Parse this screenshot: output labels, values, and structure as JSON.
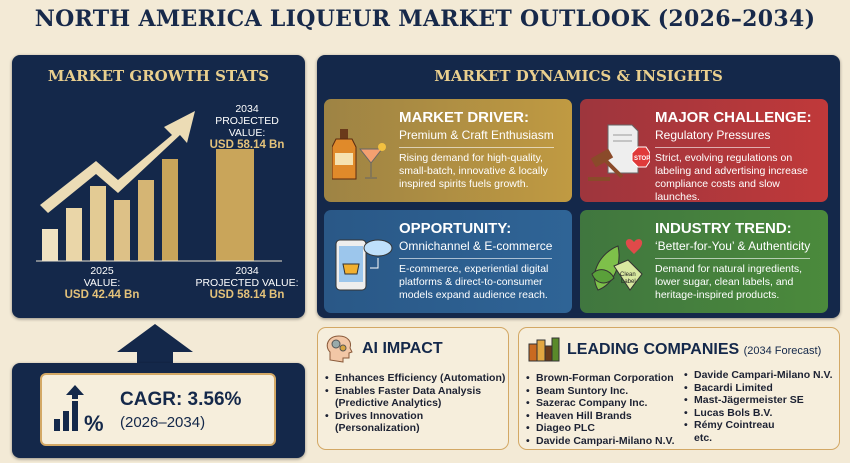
{
  "title": "NORTH AMERICA LIQUEUR MARKET OUTLOOK (2026–2034)",
  "growth": {
    "heading": "MARKET GROWTH STATS",
    "top_label": {
      "year": "2034",
      "caption": "PROJECTED VALUE:",
      "value": "USD 58.14 Bn"
    },
    "left_label": {
      "year": "2025",
      "caption": "VALUE:",
      "value": "USD 42.44 Bn"
    },
    "right_label": {
      "year": "2034",
      "caption": "PROJECTED VALUE:",
      "value": "USD 58.14 Bn"
    },
    "colors": {
      "bar": "#c9a55a",
      "panel": "#14284a"
    }
  },
  "cagr": {
    "label": "CAGR: 3.56%",
    "period": "(2026–2034)",
    "icon": "bar-chart-percent-icon"
  },
  "dynamics": {
    "heading": "MARKET DYNAMICS & INSIGHTS",
    "cards": [
      {
        "title": "MARKET DRIVER:",
        "subtitle": "Premium & Craft Enthusiasm",
        "text": "Rising demand for high-quality, small-batch, innovative & locally inspired spirits fuels growth.",
        "color": "#c09a42",
        "icon": "liquor-bottle-cocktail-icon",
        "icon_text": "ARTISANAL"
      },
      {
        "title": "MAJOR CHALLENGE:",
        "subtitle": "Regulatory Pressures",
        "text": "Strict, evolving regulations on labeling and advertising increase compliance costs and slow launches.",
        "color": "#c0393a",
        "icon": "gavel-stop-document-icon",
        "icon_text": "STOP"
      },
      {
        "title": "OPPORTUNITY:",
        "subtitle": "Omnichannel & E-commerce",
        "text": "E-commerce, experiential digital platforms & direct-to-consumer models expand audience reach.",
        "color": "#2f6496",
        "icon": "phone-cart-cloud-icon"
      },
      {
        "title": "INDUSTRY TREND:",
        "subtitle": "‘Better-for-You’ & Authenticity",
        "text": "Demand for natural ingredients, lower sugar, clean labels, and heritage-inspired products.",
        "color": "#4b8a3c",
        "icon": "leaf-clean-label-icon",
        "icon_text": "Clean Label"
      }
    ]
  },
  "ai": {
    "heading": "AI IMPACT",
    "icon": "brain-gears-icon",
    "items": [
      "Enhances Efficiency (Automation)",
      "Enables Faster Data Analysis",
      "(Predictive Analytics)",
      "Drives Innovation",
      "(Personalization)"
    ]
  },
  "companies": {
    "heading": "LEADING COMPANIES",
    "note": "(2034 Forecast)",
    "icon": "bottles-icon",
    "col1": [
      "Brown-Forman Corporation",
      "Beam Suntory Inc.",
      "Sazerac Company Inc.",
      "Heaven Hill Brands",
      "Diageo PLC",
      "Davide Campari-Milano N.V."
    ],
    "col2": [
      "Davide Campari-Milano N.V.",
      "Bacardi Limited",
      "Mast-Jägermeister SE",
      "Lucas Bols B.V.",
      "Rémy Cointreau",
      "etc."
    ]
  }
}
